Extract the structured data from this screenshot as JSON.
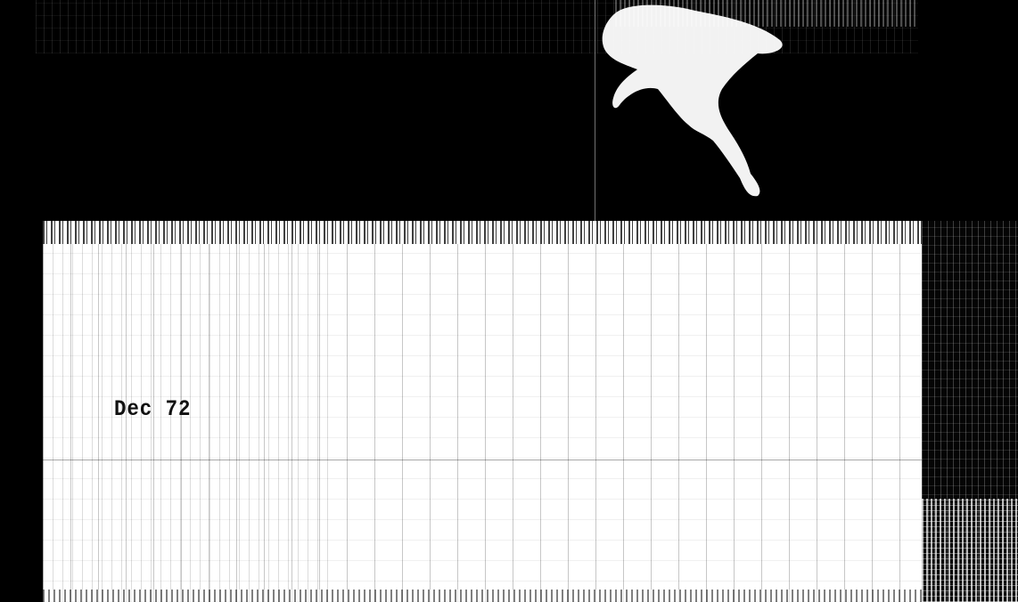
{
  "document": {
    "date_label": "Dec 72"
  }
}
